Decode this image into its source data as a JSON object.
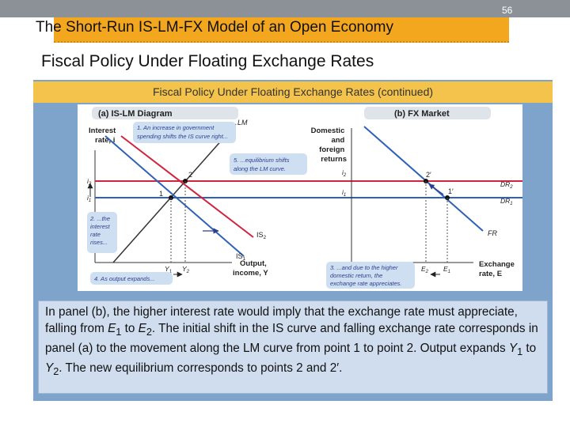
{
  "slide": {
    "title": "The Short-Run IS-LM-FX Model of an Open Economy",
    "number": "56",
    "subtitle": "Fiscal Policy Under Floating Exchange Rates",
    "colors": {
      "header_band": "#f3a71f",
      "figure_bg": "#7ea4cc",
      "caption_bar": "#f3c34c",
      "text_box": "#cfddee"
    }
  },
  "figure": {
    "caption": "Fiscal Policy Under Floating Exchange Rates (continued)",
    "panel_a": {
      "title": "(a) IS-LM Diagram",
      "y_axis_label": [
        "Interest",
        "rate, i"
      ],
      "x_axis_label": [
        "Output,",
        "income, Y"
      ],
      "lm_label": "LM",
      "is1_label": "IS",
      "is1_sub": "1",
      "is2_label": "IS",
      "is2_sub": "2",
      "y_tick_upper": "i",
      "y_tick_upper_sub": "2",
      "y_tick_lower": "i",
      "y_tick_lower_sub": "1",
      "x_tick_left": "Y",
      "x_tick_left_sub": "1",
      "x_tick_right": "Y",
      "x_tick_right_sub": "2",
      "point1": "1",
      "point2": "2",
      "note1": [
        "1. An increase in government",
        "spending shifts the IS curve right..."
      ],
      "note2": [
        "2. ...the",
        "interest",
        "rate",
        "rises..."
      ],
      "note4": "4. As output expands...",
      "note5": [
        "5. ...equilibrium shifts",
        "along the LM curve."
      ]
    },
    "panel_b": {
      "title": "(b) FX Market",
      "y_axis_label": [
        "Domestic",
        "and",
        "foreign",
        "returns"
      ],
      "x_axis_label": [
        "Exchange",
        "rate, E"
      ],
      "dr1_label": "DR",
      "dr1_sub": "1",
      "dr2_label": "DR",
      "dr2_sub": "2",
      "fr_label": "FR",
      "y_tick_upper": "i",
      "y_tick_upper_sub": "2",
      "y_tick_lower": "i",
      "y_tick_lower_sub": "1",
      "x_tick_left": "E",
      "x_tick_left_sub": "2",
      "x_tick_right": "E",
      "x_tick_right_sub": "1",
      "point2p": "2′",
      "point1p": "1′",
      "note3": [
        "3. ...and due to the higher",
        "domestic return, the",
        "exchange rate appreciates."
      ]
    }
  },
  "body_text": {
    "p1": "In panel (b), the higher interest rate would imply that the exchange rate must appreciate, falling from ",
    "e": "E",
    "e1_sub": "1",
    "to": " to ",
    "e2_sub": "2",
    "p2": ". The initial shift in the IS curve and falling exchange rate corresponds in panel (a) to the movement along the LM curve from point 1 to point 2. Output expands ",
    "y": "Y",
    "y1_sub": "1",
    "y2_sub": "2",
    "p3": ". The new equilibrium corresponds to points 2 and 2′."
  }
}
